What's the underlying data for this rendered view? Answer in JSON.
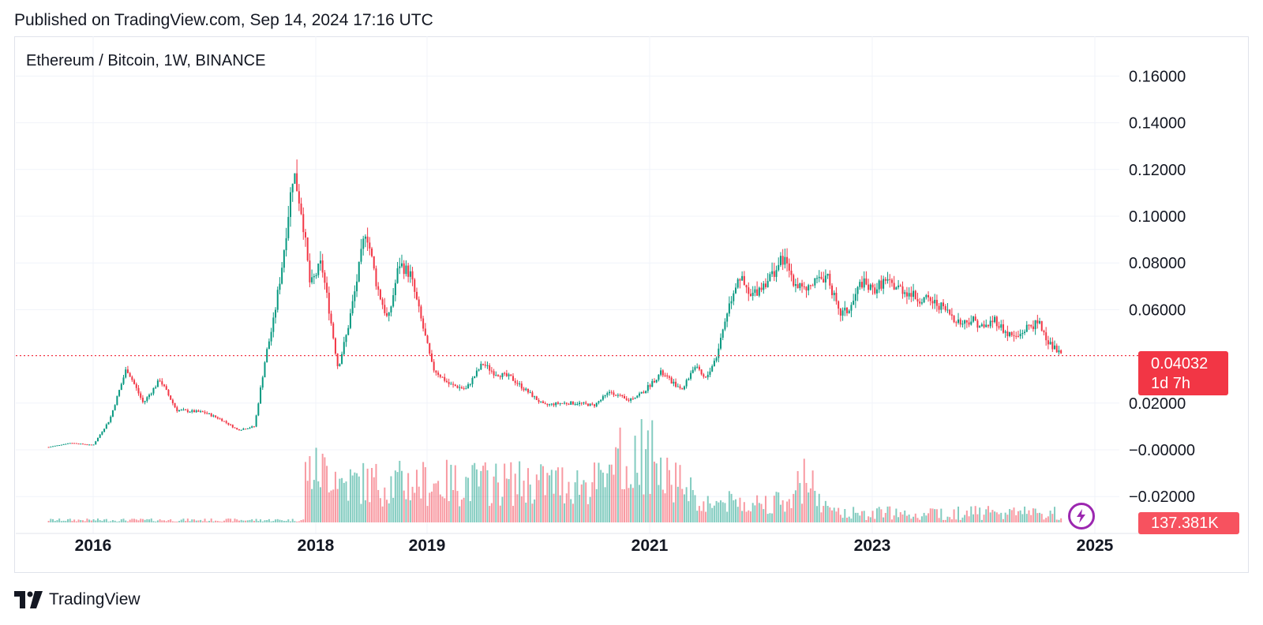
{
  "header": {
    "published": "Published on TradingView.com, Sep 14, 2024 17:16 UTC"
  },
  "footer": {
    "brand": "TradingView"
  },
  "colors": {
    "up": "#089981",
    "down": "#f23645",
    "grid": "#f0f3fa",
    "text": "#131722",
    "bolt": "#9c27b0"
  },
  "chart_data": {
    "type": "candlestick",
    "title": "Ethereum / Bitcoin, 1W, BINANCE",
    "y_ticks": [
      "0.16000",
      "0.14000",
      "0.12000",
      "0.10000",
      "0.08000",
      "0.06000",
      "0.02000",
      "−0.00000",
      "−0.02000"
    ],
    "y_tick_values": [
      0.16,
      0.14,
      0.12,
      0.1,
      0.08,
      0.06,
      0.02,
      0.0,
      -0.02
    ],
    "x_ticks": [
      "2016",
      "2018",
      "2019",
      "2021",
      "2023",
      "2025"
    ],
    "x_tick_years": [
      2016,
      2018,
      2019,
      2021,
      2023,
      2025
    ],
    "ylim": [
      -0.03,
      0.17
    ],
    "last_price": "0.04032",
    "last_price_value": 0.04032,
    "countdown": "1d 7h",
    "volume_label": "137.381K",
    "series_close": [
      [
        2015.6,
        0.0012
      ],
      [
        2015.8,
        0.003
      ],
      [
        2016.0,
        0.002
      ],
      [
        2016.15,
        0.013
      ],
      [
        2016.3,
        0.035
      ],
      [
        2016.45,
        0.02
      ],
      [
        2016.6,
        0.03
      ],
      [
        2016.75,
        0.017
      ],
      [
        2017.0,
        0.016
      ],
      [
        2017.15,
        0.013
      ],
      [
        2017.3,
        0.0085
      ],
      [
        2017.45,
        0.01
      ],
      [
        2017.55,
        0.04
      ],
      [
        2017.62,
        0.055
      ],
      [
        2017.7,
        0.08
      ],
      [
        2017.8,
        0.12
      ],
      [
        2017.88,
        0.1
      ],
      [
        2017.95,
        0.07
      ],
      [
        2018.05,
        0.08
      ],
      [
        2018.12,
        0.06
      ],
      [
        2018.2,
        0.035
      ],
      [
        2018.28,
        0.05
      ],
      [
        2018.36,
        0.07
      ],
      [
        2018.45,
        0.095
      ],
      [
        2018.55,
        0.07
      ],
      [
        2018.65,
        0.055
      ],
      [
        2018.75,
        0.08
      ],
      [
        2018.85,
        0.075
      ],
      [
        2018.95,
        0.055
      ],
      [
        2019.05,
        0.035
      ],
      [
        2019.2,
        0.028
      ],
      [
        2019.35,
        0.026
      ],
      [
        2019.5,
        0.037
      ],
      [
        2019.6,
        0.033
      ],
      [
        2019.75,
        0.031
      ],
      [
        2019.9,
        0.025
      ],
      [
        2020.05,
        0.019
      ],
      [
        2020.2,
        0.02
      ],
      [
        2020.35,
        0.02
      ],
      [
        2020.5,
        0.019
      ],
      [
        2020.65,
        0.025
      ],
      [
        2020.8,
        0.021
      ],
      [
        2020.95,
        0.025
      ],
      [
        2021.1,
        0.033
      ],
      [
        2021.2,
        0.029
      ],
      [
        2021.3,
        0.026
      ],
      [
        2021.4,
        0.036
      ],
      [
        2021.5,
        0.03
      ],
      [
        2021.6,
        0.04
      ],
      [
        2021.7,
        0.06
      ],
      [
        2021.8,
        0.075
      ],
      [
        2021.9,
        0.065
      ],
      [
        2022.0,
        0.07
      ],
      [
        2022.1,
        0.075
      ],
      [
        2022.2,
        0.082
      ],
      [
        2022.3,
        0.072
      ],
      [
        2022.4,
        0.068
      ],
      [
        2022.5,
        0.072
      ],
      [
        2022.6,
        0.075
      ],
      [
        2022.7,
        0.058
      ],
      [
        2022.8,
        0.06
      ],
      [
        2022.9,
        0.072
      ],
      [
        2023.0,
        0.068
      ],
      [
        2023.1,
        0.072
      ],
      [
        2023.2,
        0.07
      ],
      [
        2023.3,
        0.068
      ],
      [
        2023.4,
        0.065
      ],
      [
        2023.5,
        0.064
      ],
      [
        2023.6,
        0.062
      ],
      [
        2023.7,
        0.058
      ],
      [
        2023.8,
        0.054
      ],
      [
        2023.9,
        0.056
      ],
      [
        2024.0,
        0.052
      ],
      [
        2024.1,
        0.056
      ],
      [
        2024.2,
        0.05
      ],
      [
        2024.3,
        0.048
      ],
      [
        2024.4,
        0.053
      ],
      [
        2024.5,
        0.054
      ],
      [
        2024.6,
        0.045
      ],
      [
        2024.7,
        0.0403
      ]
    ]
  }
}
